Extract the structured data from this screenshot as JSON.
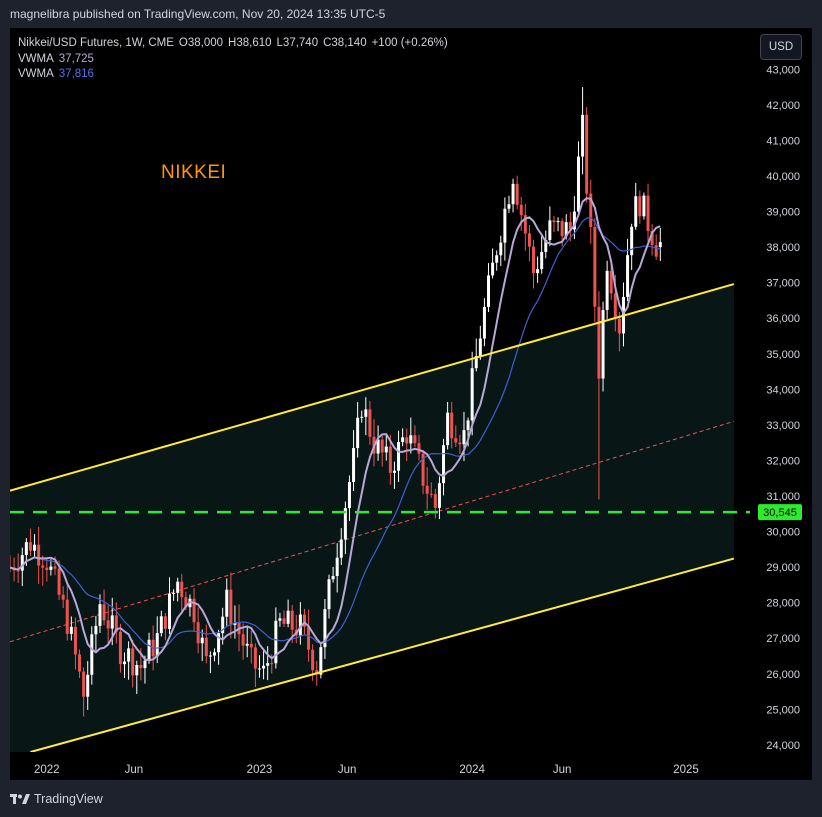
{
  "header": {
    "published_by": "magnelibra published on TradingView.com, Nov 20, 2024 13:35 UTC-5"
  },
  "legend": {
    "symbol": "Nikkei/USD Futures, 1W, CME",
    "open": "O38,000",
    "high": "H38,610",
    "low": "L37,740",
    "close": "C38,140",
    "change": "+100 (+0.26%)",
    "vwma1_label": "VWMA",
    "vwma1_value": "37,725",
    "vwma2_label": "VWMA",
    "vwma2_value": "37,816"
  },
  "currency_button": "USD",
  "annotation": "NIKKEI",
  "footer": {
    "brand": "TradingView"
  },
  "colors": {
    "up": "#ffffff",
    "down": "#ef5350",
    "vwma_fast": "#b7a8d8",
    "vwma_slow": "#3f5fd0",
    "channel": "#ffeb3b",
    "support": "#2dec2d",
    "midline": "#ef5350"
  },
  "chart_data": {
    "type": "candlestick",
    "title": "",
    "x_ticks": [
      "2022",
      "Jun",
      "2023",
      "Jun",
      "2024",
      "Jun",
      "2025"
    ],
    "y_ticks": [
      24000,
      25000,
      26000,
      27000,
      28000,
      29000,
      30000,
      31000,
      32000,
      33000,
      34000,
      35000,
      36000,
      37000,
      38000,
      39000,
      40000,
      41000,
      42000,
      43000
    ],
    "ylim": [
      23800,
      43600
    ],
    "xlim": [
      "2021-11-01",
      "2025-03-31"
    ],
    "support_level": {
      "value": 30545,
      "label": "30,545",
      "style": "dashed"
    },
    "channel_upper": {
      "from": [
        "2021-11-01",
        31150
      ],
      "to": [
        "2025-03-24",
        36960
      ]
    },
    "channel_lower": {
      "from": [
        "2021-12-06",
        23800
      ],
      "to": [
        "2025-03-24",
        29240
      ]
    },
    "channel_mid": {
      "from": [
        "2021-11-01",
        26900
      ],
      "to": [
        "2025-03-24",
        33100
      ]
    },
    "price_anchors": [
      [
        "2021-11-01",
        29000
      ],
      [
        "2021-12-06",
        29700
      ],
      [
        "2022-01-03",
        29200
      ],
      [
        "2022-02-07",
        27500
      ],
      [
        "2022-03-07",
        25400
      ],
      [
        "2022-04-04",
        28000
      ],
      [
        "2022-05-09",
        26700
      ],
      [
        "2022-06-13",
        26200
      ],
      [
        "2022-07-11",
        27000
      ],
      [
        "2022-08-15",
        28600
      ],
      [
        "2022-09-12",
        27800
      ],
      [
        "2022-10-03",
        26300
      ],
      [
        "2022-11-07",
        28000
      ],
      [
        "2022-12-19",
        26300
      ],
      [
        "2023-01-09",
        26000
      ],
      [
        "2023-02-06",
        27400
      ],
      [
        "2023-03-13",
        27300
      ],
      [
        "2023-04-10",
        26200
      ],
      [
        "2023-05-08",
        29000
      ],
      [
        "2023-06-12",
        32000
      ],
      [
        "2023-06-26",
        33600
      ],
      [
        "2023-07-17",
        32500
      ],
      [
        "2023-08-14",
        31800
      ],
      [
        "2023-09-11",
        32800
      ],
      [
        "2023-10-16",
        31200
      ],
      [
        "2023-10-30",
        30700
      ],
      [
        "2023-11-20",
        33200
      ],
      [
        "2023-12-18",
        32700
      ],
      [
        "2024-01-15",
        35600
      ],
      [
        "2024-02-12",
        38000
      ],
      [
        "2024-03-11",
        40100
      ],
      [
        "2024-04-15",
        37300
      ],
      [
        "2024-05-13",
        38500
      ],
      [
        "2024-06-17",
        38500
      ],
      [
        "2024-07-08",
        41300
      ],
      [
        "2024-07-22",
        38200
      ],
      [
        "2024-08-05",
        34600
      ],
      [
        "2024-08-19",
        37700
      ],
      [
        "2024-09-09",
        35800
      ],
      [
        "2024-09-30",
        38900
      ],
      [
        "2024-10-14",
        39300
      ],
      [
        "2024-11-11",
        38100
      ],
      [
        "2024-11-18",
        38140
      ]
    ],
    "notable_extremes": [
      [
        "2024-07-08",
        42500,
        "high"
      ],
      [
        "2024-08-05",
        30900,
        "low"
      ],
      [
        "2022-03-07",
        24800,
        "low"
      ]
    ],
    "series": [
      {
        "name": "VWMA",
        "value": 37725
      },
      {
        "name": "VWMA",
        "value": 37816
      }
    ]
  }
}
